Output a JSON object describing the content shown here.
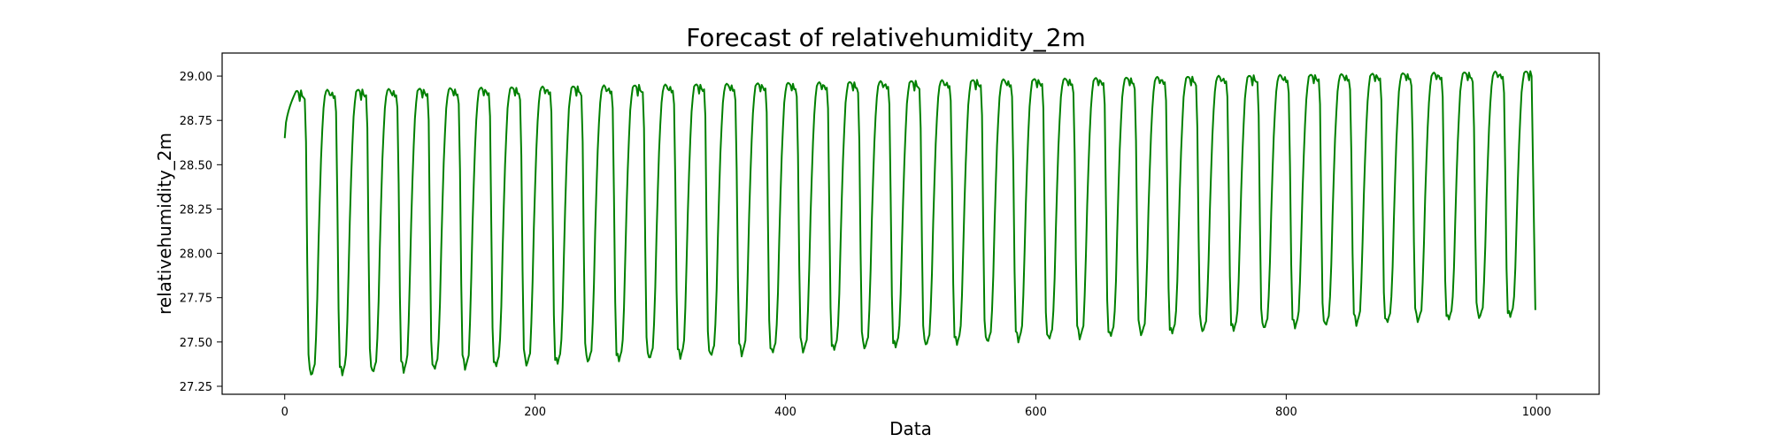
{
  "chart_data": {
    "type": "line",
    "title": "Forecast of relativehumidity_2m",
    "xlabel": "Data",
    "ylabel": "relativehumidity_2m",
    "xlim": [
      -50,
      1050
    ],
    "ylim": [
      27.205,
      29.13
    ],
    "xticks": [
      0,
      200,
      400,
      600,
      800,
      1000
    ],
    "yticks": [
      27.25,
      27.5,
      27.75,
      28.0,
      28.25,
      28.5,
      28.75,
      29.0
    ],
    "grid": false,
    "series": [
      {
        "color": "#008000",
        "x_start": 0,
        "x_end": 999,
        "cycle_period": 24.55,
        "cycles": 41,
        "peak_start": 28.92,
        "peak_end": 29.03,
        "trough_start": 27.29,
        "trough_end": 27.64,
        "initial_value": 28.65,
        "final_value": 27.68
      }
    ]
  }
}
